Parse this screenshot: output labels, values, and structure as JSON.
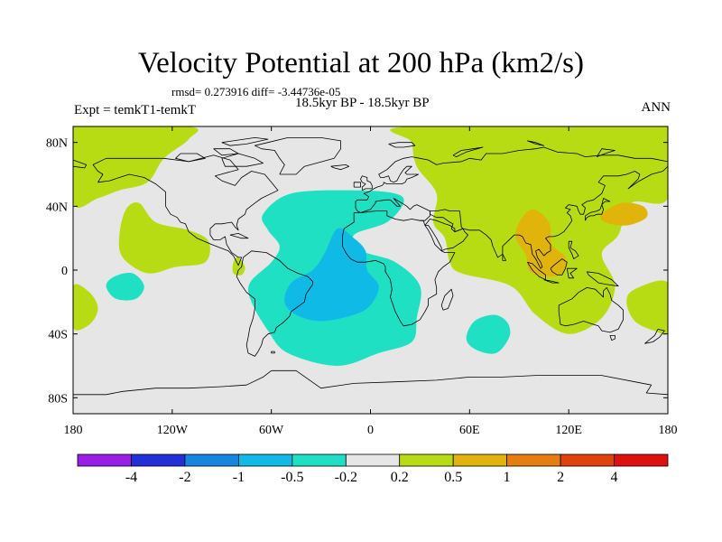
{
  "title": "Velocity Potential at 200 hPa (km2/s)",
  "stats": "rmsd= 0.273916  diff= -3.44736e-05",
  "experiment": "Expt = temkT1-temkT",
  "subtitle": "18.5kyr BP - 18.5kyr BP",
  "season": "ANN",
  "chart_data": {
    "type": "contour-map",
    "variable": "Velocity potential difference at 200 hPa",
    "units": "km2/s",
    "projection": "cylindrical equidistant",
    "x_range": [
      -180,
      180
    ],
    "y_range": [
      -90,
      90
    ],
    "x_ticks": [
      {
        "value": -180,
        "label": "180"
      },
      {
        "value": -120,
        "label": "120W"
      },
      {
        "value": -60,
        "label": "60W"
      },
      {
        "value": 0,
        "label": "0"
      },
      {
        "value": 60,
        "label": "60E"
      },
      {
        "value": 120,
        "label": "120E"
      },
      {
        "value": 180,
        "label": "180"
      }
    ],
    "y_ticks": [
      {
        "value": 80,
        "label": "80N"
      },
      {
        "value": 40,
        "label": "40N"
      },
      {
        "value": 0,
        "label": "0"
      },
      {
        "value": -40,
        "label": "40S"
      },
      {
        "value": -80,
        "label": "80S"
      }
    ],
    "levels": [
      "-4",
      "-2",
      "-1",
      "-0.5",
      "-0.2",
      "0.2",
      "0.5",
      "1",
      "2",
      "4"
    ],
    "colors": [
      "#9a1fe6",
      "#2330d8",
      "#1585e0",
      "#0fbbe6",
      "#20e0c3",
      "#e6e6e6",
      "#b8dc14",
      "#e0b40a",
      "#e67d10",
      "#e0420e",
      "#e01010"
    ],
    "regions": [
      {
        "name": "Atlantic/South America negative anomaly",
        "level_range": [
          "-0.5",
          "-0.2"
        ],
        "color_index": 4,
        "path": [
          [
            -48,
            48
          ],
          [
            -10,
            50
          ],
          [
            15,
            48
          ],
          [
            20,
            42
          ],
          [
            10,
            30
          ],
          [
            -10,
            22
          ],
          [
            -5,
            12
          ],
          [
            15,
            5
          ],
          [
            30,
            -10
          ],
          [
            28,
            -30
          ],
          [
            25,
            -45
          ],
          [
            5,
            -52
          ],
          [
            -20,
            -60
          ],
          [
            -50,
            -52
          ],
          [
            -62,
            -38
          ],
          [
            -72,
            -20
          ],
          [
            -73,
            -8
          ],
          [
            -60,
            5
          ],
          [
            -55,
            15
          ],
          [
            -62,
            25
          ],
          [
            -65,
            35
          ]
        ]
      },
      {
        "name": "Core negative anomaly",
        "level_range": [
          "-1",
          "-0.5"
        ],
        "color_index": 3,
        "path": [
          [
            -20,
            26
          ],
          [
            -10,
            20
          ],
          [
            -3,
            12
          ],
          [
            -2,
            0
          ],
          [
            5,
            -10
          ],
          [
            0,
            -22
          ],
          [
            -10,
            -28
          ],
          [
            -30,
            -32
          ],
          [
            -45,
            -28
          ],
          [
            -52,
            -20
          ],
          [
            -48,
            -8
          ],
          [
            -35,
            0
          ],
          [
            -28,
            10
          ]
        ]
      },
      {
        "name": "South Indian Ocean negative anomaly",
        "level_range": [
          "-0.5",
          "-0.2"
        ],
        "color_index": 4,
        "path": [
          [
            63,
            -32
          ],
          [
            75,
            -28
          ],
          [
            83,
            -33
          ],
          [
            84,
            -42
          ],
          [
            76,
            -52
          ],
          [
            64,
            -50
          ],
          [
            58,
            -43
          ]
        ]
      },
      {
        "name": "Eastern Pacific negative anomaly",
        "level_range": [
          "-0.5",
          "-0.2"
        ],
        "color_index": 4,
        "path": [
          [
            -155,
            -4
          ],
          [
            -144,
            -2
          ],
          [
            -137,
            -10
          ],
          [
            -142,
            -18
          ],
          [
            -154,
            -18
          ],
          [
            -160,
            -10
          ]
        ]
      },
      {
        "name": "Asia positive anomaly",
        "level_range": [
          "0.2",
          "0.5"
        ],
        "color_index": 6,
        "path": [
          [
            23,
            90
          ],
          [
            180,
            90
          ],
          [
            180,
            45
          ],
          [
            158,
            42
          ],
          [
            150,
            22
          ],
          [
            140,
            10
          ],
          [
            148,
            -10
          ],
          [
            140,
            -30
          ],
          [
            120,
            -40
          ],
          [
            100,
            -28
          ],
          [
            85,
            -10
          ],
          [
            55,
            -2
          ],
          [
            48,
            5
          ],
          [
            45,
            20
          ],
          [
            38,
            30
          ],
          [
            40,
            48
          ],
          [
            28,
            65
          ],
          [
            25,
            80
          ]
        ]
      },
      {
        "name": "Asia positive core",
        "level_range": [
          "0.5",
          "1"
        ],
        "color_index": 7,
        "path": [
          [
            90,
            30
          ],
          [
            98,
            38
          ],
          [
            108,
            30
          ],
          [
            110,
            16
          ],
          [
            118,
            8
          ],
          [
            116,
            -2
          ],
          [
            105,
            -4
          ],
          [
            96,
            0
          ],
          [
            94,
            10
          ],
          [
            88,
            20
          ]
        ]
      },
      {
        "name": "NW Pacific positive core",
        "level_range": [
          "0.5",
          "1"
        ],
        "color_index": 7,
        "path": [
          [
            140,
            35
          ],
          [
            152,
            42
          ],
          [
            165,
            40
          ],
          [
            167,
            33
          ],
          [
            155,
            28
          ],
          [
            142,
            30
          ]
        ]
      },
      {
        "name": "North America positive anomaly",
        "level_range": [
          "0.2",
          "0.5"
        ],
        "color_index": 6,
        "path": [
          [
            -180,
            90
          ],
          [
            -110,
            90
          ],
          [
            -110,
            82
          ],
          [
            -125,
            70
          ],
          [
            -135,
            55
          ],
          [
            -152,
            50
          ],
          [
            -165,
            45
          ],
          [
            -180,
            42
          ]
        ]
      },
      {
        "name": "North Pacific positive anomaly",
        "level_range": [
          "0.2",
          "0.5"
        ],
        "color_index": 6,
        "path": [
          [
            -148,
            38
          ],
          [
            -140,
            42
          ],
          [
            -130,
            30
          ],
          [
            -110,
            25
          ],
          [
            -98,
            18
          ],
          [
            -100,
            5
          ],
          [
            -118,
            2
          ],
          [
            -135,
            -2
          ],
          [
            -150,
            8
          ],
          [
            -152,
            22
          ]
        ]
      },
      {
        "name": "SW Pacific positive anomaly",
        "level_range": [
          "0.2",
          "0.5"
        ],
        "color_index": 6,
        "path": [
          [
            -180,
            -10
          ],
          [
            -170,
            -14
          ],
          [
            -165,
            -24
          ],
          [
            -170,
            -34
          ],
          [
            -180,
            -36
          ]
        ]
      },
      {
        "name": "SW Pacific positive anomaly (east)",
        "level_range": [
          "0.2",
          "0.5"
        ],
        "color_index": 6,
        "path": [
          [
            180,
            -8
          ],
          [
            160,
            -12
          ],
          [
            155,
            -20
          ],
          [
            160,
            -32
          ],
          [
            172,
            -38
          ],
          [
            180,
            -38
          ]
        ]
      },
      {
        "name": "Central America positive anomaly",
        "level_range": [
          "0.2",
          "0.5"
        ],
        "color_index": 6,
        "path": [
          [
            -83,
            5
          ],
          [
            -80,
            8
          ],
          [
            -76,
            2
          ],
          [
            -78,
            -3
          ],
          [
            -83,
            -2
          ]
        ]
      }
    ]
  }
}
